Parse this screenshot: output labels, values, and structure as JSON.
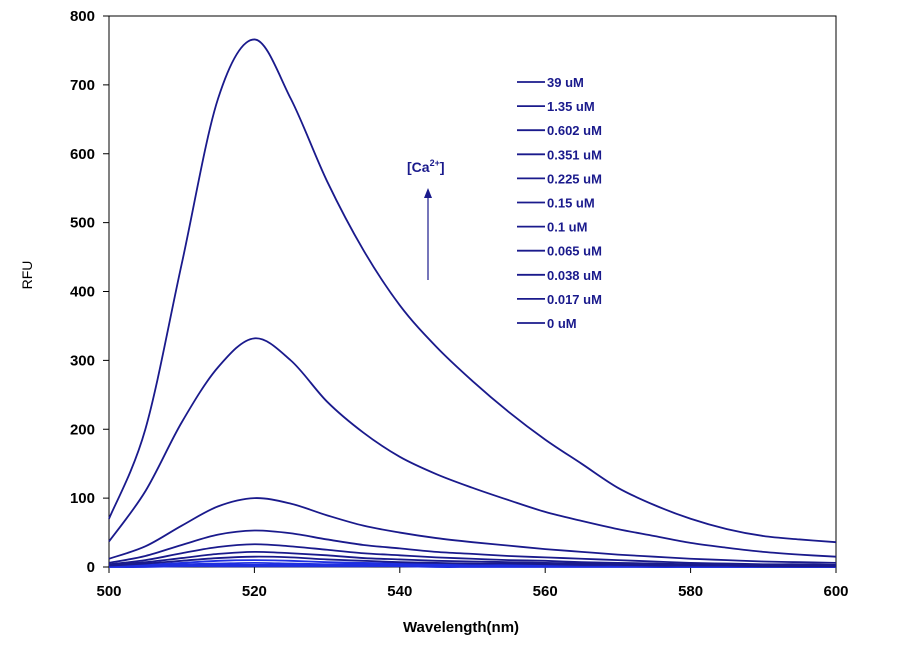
{
  "chart_data": {
    "type": "line",
    "title": "",
    "xlabel": "Wavelength(nm)",
    "ylabel": "RFU",
    "xlim": [
      500,
      600
    ],
    "ylim": [
      0,
      800
    ],
    "xticks": [
      500,
      520,
      540,
      560,
      580,
      600
    ],
    "yticks": [
      0,
      100,
      200,
      300,
      400,
      500,
      600,
      700,
      800
    ],
    "grid": false,
    "legend_placement": "top-right (inside)",
    "line_color": "#1a1a8c",
    "legend_text_color": "#1a1a8c",
    "annotation": {
      "label": "[Ca",
      "superscript": "2+",
      "label_end": "]",
      "arrow": "up"
    },
    "x": [
      500,
      505,
      510,
      515,
      520,
      525,
      530,
      535,
      540,
      545,
      550,
      555,
      560,
      565,
      570,
      575,
      580,
      585,
      590,
      595,
      600
    ],
    "series": [
      {
        "name": "39 uM",
        "values": [
          70,
          200,
          440,
          680,
          766,
          680,
          560,
          460,
          380,
          320,
          270,
          225,
          185,
          150,
          115,
          90,
          70,
          55,
          45,
          40,
          36
        ]
      },
      {
        "name": "1.35 uM",
        "values": [
          37,
          110,
          210,
          290,
          332,
          300,
          240,
          195,
          160,
          135,
          115,
          97,
          80,
          67,
          55,
          45,
          35,
          28,
          22,
          18,
          15
        ]
      },
      {
        "name": "0.602 uM",
        "values": [
          12,
          30,
          60,
          88,
          100,
          92,
          75,
          60,
          50,
          42,
          36,
          31,
          26,
          22,
          18,
          15,
          12,
          10,
          8,
          7,
          6
        ]
      },
      {
        "name": "0.351 uM",
        "values": [
          6,
          16,
          32,
          47,
          53,
          49,
          40,
          32,
          27,
          22,
          19,
          16,
          14,
          12,
          10,
          8,
          6,
          5,
          4,
          4,
          3
        ]
      },
      {
        "name": "0.225 uM",
        "values": [
          4,
          10,
          20,
          29,
          33,
          30,
          25,
          20,
          17,
          14,
          12,
          10,
          9,
          7,
          6,
          5,
          4,
          3,
          3,
          2,
          2
        ]
      },
      {
        "name": "0.15 uM",
        "values": [
          3,
          7,
          13,
          19,
          22,
          20,
          17,
          13,
          11,
          9,
          8,
          7,
          6,
          5,
          4,
          3,
          3,
          2,
          2,
          2,
          1
        ]
      },
      {
        "name": "0.1 uM",
        "values": [
          2,
          5,
          9,
          13,
          15,
          14,
          11,
          9,
          7,
          6,
          5,
          5,
          4,
          3,
          3,
          2,
          2,
          2,
          1,
          1,
          1
        ]
      },
      {
        "name": "0.065 uM",
        "values": [
          1,
          3,
          6,
          9,
          10,
          9,
          7,
          6,
          5,
          4,
          4,
          3,
          3,
          2,
          2,
          2,
          1,
          1,
          1,
          1,
          1
        ]
      },
      {
        "name": "0.038 uM",
        "values": [
          1,
          2,
          4,
          5,
          6,
          5,
          4,
          4,
          3,
          2,
          2,
          2,
          2,
          1,
          1,
          1,
          1,
          1,
          1,
          0,
          0
        ]
      },
      {
        "name": "0.017 uM",
        "values": [
          0,
          1,
          2,
          3,
          3,
          3,
          2,
          2,
          2,
          1,
          1,
          1,
          1,
          1,
          1,
          0,
          0,
          0,
          0,
          0,
          0
        ]
      },
      {
        "name": "0 uM",
        "values": [
          0,
          0,
          1,
          1,
          1,
          1,
          1,
          1,
          1,
          0,
          0,
          0,
          0,
          0,
          0,
          0,
          0,
          0,
          0,
          0,
          0
        ]
      }
    ]
  }
}
